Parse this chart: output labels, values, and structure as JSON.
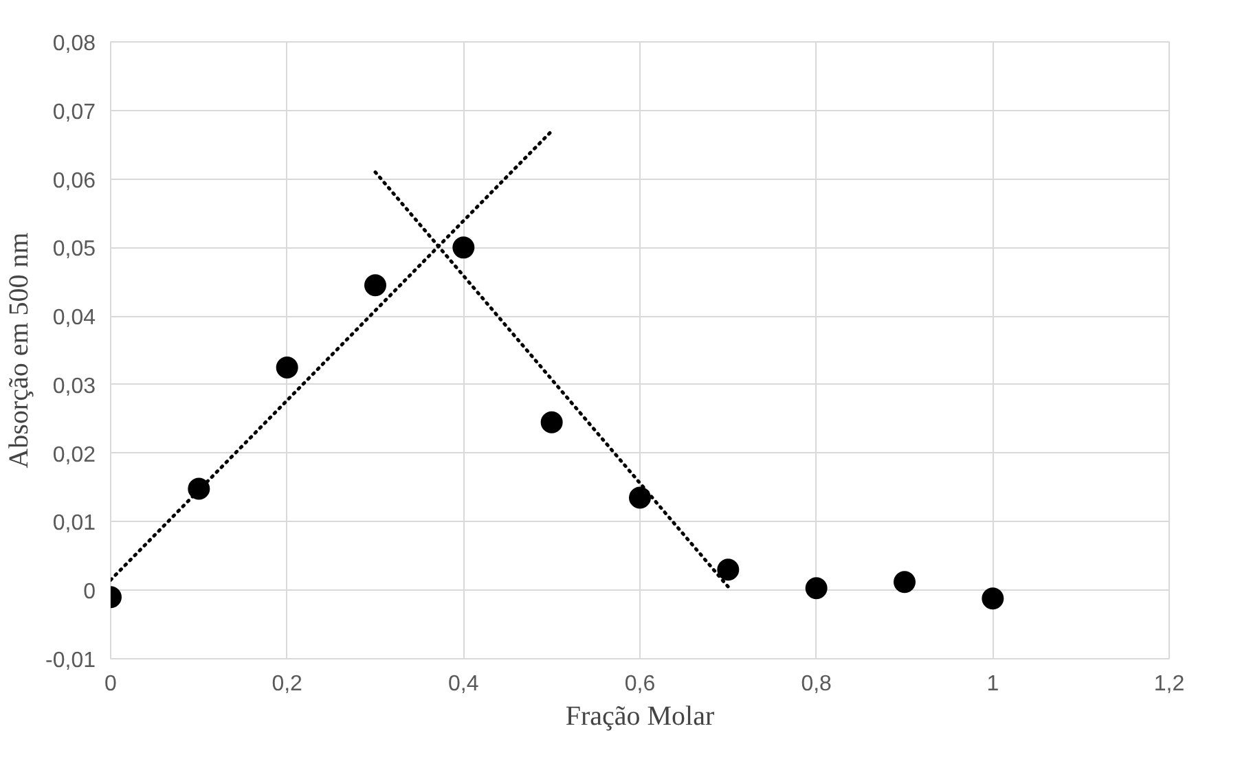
{
  "chart_data": {
    "type": "scatter",
    "xlabel": "Fração Molar",
    "ylabel": "Absorção em 500 nm",
    "marker": "circle",
    "grid": true,
    "xlim": [
      0,
      1.2
    ],
    "xticks": [
      {
        "value": 0,
        "label": "0"
      },
      {
        "value": 0.2,
        "label": "0,2"
      },
      {
        "value": 0.4,
        "label": "0,4"
      },
      {
        "value": 0.6,
        "label": "0,6"
      },
      {
        "value": 0.8,
        "label": "0,8"
      },
      {
        "value": 1,
        "label": "1"
      },
      {
        "value": 1.2,
        "label": "1,2"
      }
    ],
    "ylim": [
      -0.01,
      0.08
    ],
    "yticks": [
      {
        "value": -0.01,
        "label": "-0,01"
      },
      {
        "value": 0,
        "label": "0"
      },
      {
        "value": 0.01,
        "label": "0,01"
      },
      {
        "value": 0.02,
        "label": "0,02"
      },
      {
        "value": 0.03,
        "label": "0,03"
      },
      {
        "value": 0.04,
        "label": "0,04"
      },
      {
        "value": 0.05,
        "label": "0,05"
      },
      {
        "value": 0.06,
        "label": "0,06"
      },
      {
        "value": 0.07,
        "label": "0,07"
      },
      {
        "value": 0.08,
        "label": "0,08"
      }
    ],
    "series": [
      {
        "color": "#000000",
        "x": [
          0,
          0.1,
          0.2,
          0.3,
          0.4,
          0.5,
          0.6,
          0.7,
          0.8,
          0.9,
          1
        ],
        "values": [
          -0.001,
          0.0148,
          0.0325,
          0.0445,
          0.05,
          0.0245,
          0.0135,
          0.003,
          0.0003,
          0.0012,
          -0.0012
        ]
      },
      {
        "type": "line",
        "line_style": "dotted",
        "marker": "none",
        "color": "#000000",
        "x": [
          0,
          0.5
        ],
        "values": [
          0.0015,
          0.067
        ]
      },
      {
        "type": "line",
        "line_style": "dotted",
        "marker": "none",
        "color": "#000000",
        "x": [
          0.3,
          0.7
        ],
        "values": [
          0.061,
          0.0005
        ]
      }
    ]
  }
}
